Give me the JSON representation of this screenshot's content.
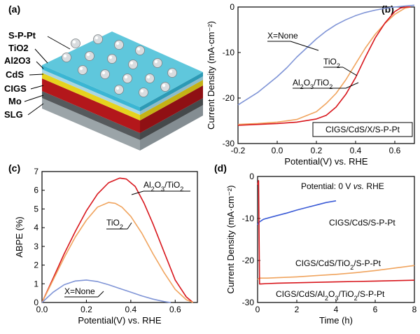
{
  "panels": {
    "a": "(a)",
    "b": "(b)",
    "c": "(c)",
    "d": "(d)"
  },
  "schematic": {
    "layers": [
      "S-P-Pt",
      "TiO2",
      "Al2O3",
      "CdS",
      "CIGS",
      "Mo",
      "SLG"
    ],
    "colors": {
      "top": "#5fc7dc",
      "tio2": "#3bb6d3",
      "al2o3": "#a9d6e3",
      "cds": "#e6d31e",
      "cigs": "#b3171b",
      "mo": "#55595c",
      "slg": "#9ba4a8"
    }
  },
  "chart_data": [
    {
      "panel": "b",
      "type": "line",
      "xlabel": "Potential(V) vs. RHE",
      "ylabel": "Current Density (mA·cm⁻²)",
      "xlim": [
        -0.2,
        0.7
      ],
      "ylim": [
        -30,
        0
      ],
      "xticks": [
        -0.2,
        0.0,
        0.2,
        0.4,
        0.6
      ],
      "yticks": [
        0,
        -10,
        -20,
        -30
      ],
      "legend_box": "CIGS/CdS/X/S-P-Pt",
      "annotations": [
        "X=None",
        "TiO2",
        "Al2O3/TiO2"
      ],
      "series": [
        {
          "name": "X=None",
          "color": "#7f94d6",
          "x": [
            -0.2,
            -0.1,
            0.0,
            0.05,
            0.1,
            0.15,
            0.2,
            0.25,
            0.3,
            0.35,
            0.4,
            0.45,
            0.5,
            0.55,
            0.6,
            0.65,
            0.7
          ],
          "y": [
            -21.5,
            -18.8,
            -15.3,
            -13.3,
            -11.0,
            -9.0,
            -7.0,
            -5.3,
            -3.9,
            -2.8,
            -1.9,
            -1.2,
            -0.7,
            -0.3,
            0.0,
            0.2,
            0.4
          ]
        },
        {
          "name": "TiO2",
          "color": "#f0a45e",
          "x": [
            -0.2,
            -0.1,
            0.0,
            0.1,
            0.2,
            0.25,
            0.3,
            0.35,
            0.4,
            0.45,
            0.5,
            0.55,
            0.6,
            0.65,
            0.68
          ],
          "y": [
            -25.8,
            -25.6,
            -25.3,
            -24.7,
            -23.0,
            -21.2,
            -19.0,
            -16.0,
            -12.5,
            -9.0,
            -6.0,
            -3.6,
            -1.6,
            -0.3,
            0.0
          ]
        },
        {
          "name": "Al2O3/TiO2",
          "color": "#d8161c",
          "x": [
            -0.2,
            -0.1,
            0.0,
            0.1,
            0.2,
            0.25,
            0.3,
            0.35,
            0.4,
            0.45,
            0.5,
            0.55,
            0.6,
            0.63,
            0.66,
            0.68
          ],
          "y": [
            -26.0,
            -25.8,
            -25.6,
            -25.3,
            -24.6,
            -23.8,
            -22.0,
            -19.2,
            -15.5,
            -11.0,
            -6.8,
            -3.5,
            -1.0,
            -0.2,
            0.0,
            0.0
          ]
        }
      ]
    },
    {
      "panel": "c",
      "type": "line",
      "xlabel": "Potential(V) vs. RHE",
      "ylabel": "ABPE (%)",
      "xlim": [
        0.0,
        0.7
      ],
      "ylim": [
        0,
        7
      ],
      "xticks": [
        0.0,
        0.2,
        0.4,
        0.6
      ],
      "yticks": [
        0,
        1,
        2,
        3,
        4,
        5,
        6,
        7
      ],
      "annotations": [
        "Al2O3/TiO2",
        "TiO2",
        "X=None"
      ],
      "series": [
        {
          "name": "Al2O3/TiO2",
          "color": "#d8161c",
          "x": [
            0.0,
            0.05,
            0.1,
            0.15,
            0.2,
            0.25,
            0.3,
            0.35,
            0.38,
            0.42,
            0.46,
            0.5,
            0.55,
            0.6,
            0.65,
            0.68
          ],
          "y": [
            0.0,
            1.3,
            2.6,
            3.8,
            4.9,
            5.8,
            6.4,
            6.65,
            6.6,
            6.2,
            5.3,
            4.2,
            2.7,
            1.2,
            0.3,
            0.0
          ]
        },
        {
          "name": "TiO2",
          "color": "#f0a45e",
          "x": [
            0.0,
            0.05,
            0.1,
            0.15,
            0.2,
            0.25,
            0.3,
            0.33,
            0.36,
            0.4,
            0.45,
            0.5,
            0.55,
            0.6,
            0.65,
            0.68
          ],
          "y": [
            0.0,
            1.2,
            2.4,
            3.5,
            4.4,
            5.1,
            5.35,
            5.3,
            5.1,
            4.6,
            3.7,
            2.6,
            1.6,
            0.7,
            0.15,
            0.0
          ]
        },
        {
          "name": "X=None",
          "color": "#7f94d6",
          "x": [
            0.0,
            0.05,
            0.1,
            0.15,
            0.2,
            0.25,
            0.3,
            0.35,
            0.4,
            0.45,
            0.5,
            0.55,
            0.58
          ],
          "y": [
            0.0,
            0.55,
            0.95,
            1.15,
            1.2,
            1.12,
            0.95,
            0.75,
            0.55,
            0.35,
            0.18,
            0.05,
            0.0
          ]
        }
      ]
    },
    {
      "panel": "d",
      "type": "line",
      "xlabel": "Time (h)",
      "ylabel": "Current Density (mA·cm⁻²)",
      "xlim": [
        0,
        8
      ],
      "ylim": [
        -30,
        0
      ],
      "xticks": [
        0,
        2,
        4,
        6,
        8
      ],
      "yticks": [
        0,
        -10,
        -20,
        -30
      ],
      "title": "Potential: 0 V vs. RHE",
      "annotations": [
        "CIGS/CdS/S-P-Pt",
        "CIGS/CdS/TiO2/S-P-Pt",
        "CIGS/CdS/Al2O3/TiO2/S-P-Pt"
      ],
      "series": [
        {
          "name": "CIGS/CdS/S-P-Pt",
          "color": "#3b5bd6",
          "x": [
            0.0,
            0.05,
            0.1,
            0.3,
            0.6,
            1.0,
            1.5,
            2.0,
            2.5,
            3.0,
            3.5,
            4.0
          ],
          "y": [
            -11.5,
            -11.0,
            -10.8,
            -10.2,
            -9.8,
            -9.3,
            -8.7,
            -8.0,
            -7.4,
            -6.8,
            -6.2,
            -5.8
          ]
        },
        {
          "name": "CIGS/CdS/TiO2/S-P-Pt",
          "color": "#f0a45e",
          "x": [
            0.0,
            0.1,
            0.5,
            1.0,
            2.0,
            3.0,
            4.0,
            5.0,
            6.0,
            7.0,
            8.0
          ],
          "y": [
            -24.5,
            -24.2,
            -24.2,
            -24.1,
            -23.9,
            -23.6,
            -23.3,
            -22.9,
            -22.4,
            -21.8,
            -21.2
          ]
        },
        {
          "name": "CIGS/CdS/Al2O3/TiO2/S-P-Pt",
          "color": "#d8161c",
          "x": [
            0.0,
            0.05,
            0.08,
            0.1,
            0.15,
            0.5,
            1.0,
            2.0,
            3.0,
            4.0,
            5.0,
            6.0,
            7.0,
            8.0
          ],
          "y": [
            -2.0,
            -1.0,
            -15.0,
            -25.6,
            -25.6,
            -25.5,
            -25.4,
            -25.3,
            -25.2,
            -25.1,
            -25.0,
            -24.9,
            -24.8,
            -24.7
          ]
        }
      ]
    }
  ]
}
